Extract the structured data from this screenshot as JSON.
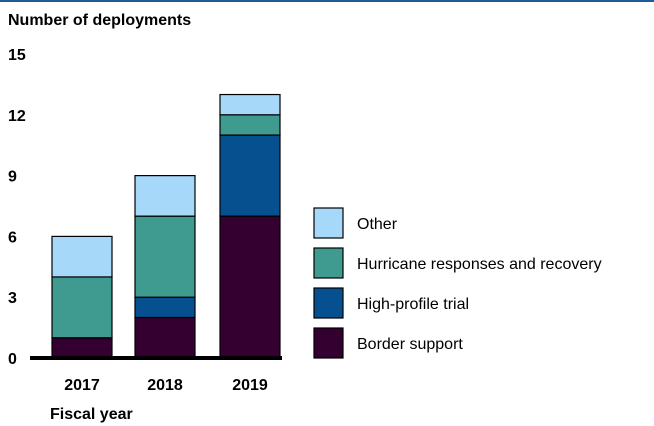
{
  "chart_data": {
    "type": "bar",
    "stacked": true,
    "ylabel": "Number of deployments",
    "xlabel": "Fiscal year",
    "categories": [
      "2017",
      "2018",
      "2019"
    ],
    "ylim": [
      0,
      15
    ],
    "yticks": [
      0,
      3,
      6,
      9,
      12,
      15
    ],
    "grid": false,
    "legend_position": "right",
    "series": [
      {
        "name": "Border support",
        "values": [
          1,
          2,
          7
        ],
        "color": "#33002f"
      },
      {
        "name": "High-profile trial",
        "values": [
          0,
          1,
          4
        ],
        "color": "#06508f"
      },
      {
        "name": "Hurricane responses and recovery",
        "values": [
          3,
          4,
          1
        ],
        "color": "#3f9a8f"
      },
      {
        "name": "Other",
        "values": [
          2,
          2,
          1
        ],
        "color": "#a6d8fa"
      }
    ],
    "legend_order": [
      "Other",
      "Hurricane responses and recovery",
      "High-profile trial",
      "Border support"
    ]
  }
}
